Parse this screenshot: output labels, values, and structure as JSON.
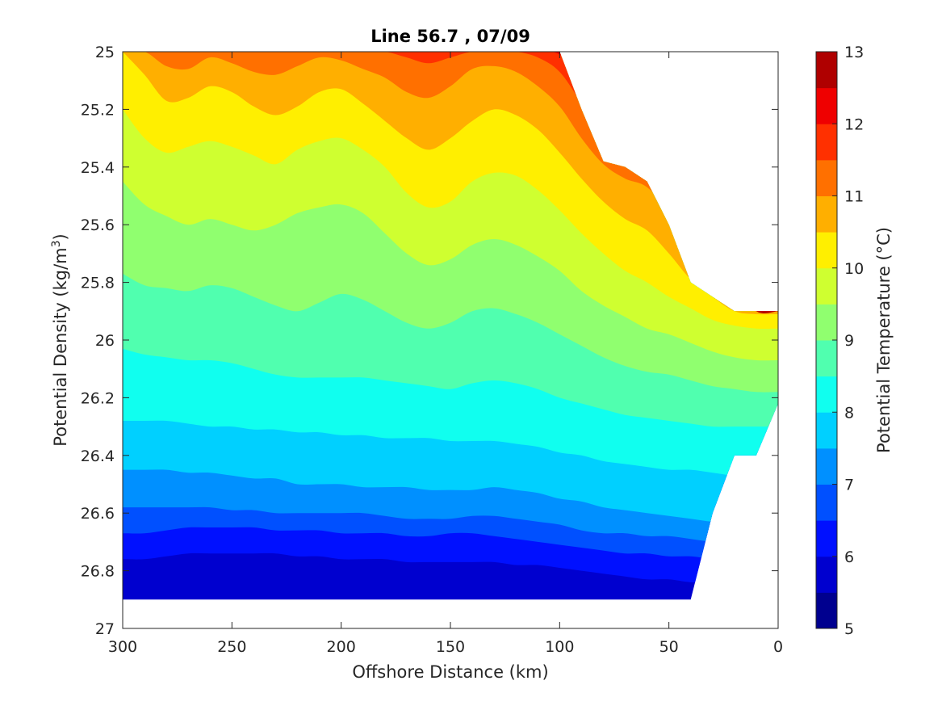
{
  "chart_data": {
    "type": "filled-contour",
    "title": "Line 56.7 , 07/09",
    "xlabel": "Offshore Distance (km)",
    "ylabel": "Potential Density (kg/m^3)",
    "ylabel_parts": {
      "main": "Potential Density (kg/m",
      "sup": "3",
      "close": ")"
    },
    "colorbar_label": "Potential Temperature (°C)",
    "xlim": [
      0,
      300
    ],
    "x_reversed": true,
    "ylim": [
      25,
      27
    ],
    "y_reversed": true,
    "x_ticks": [
      300,
      250,
      200,
      150,
      100,
      50,
      0
    ],
    "x_tick_labels": [
      "300",
      "250",
      "200",
      "150",
      "100",
      "50",
      "0"
    ],
    "y_ticks": [
      25,
      25.2,
      25.4,
      25.6,
      25.8,
      26,
      26.2,
      26.4,
      26.6,
      26.8,
      27
    ],
    "y_tick_labels": [
      "25",
      "25.2",
      "25.4",
      "25.6",
      "25.8",
      "26",
      "26.2",
      "26.4",
      "26.6",
      "26.8",
      "27"
    ],
    "colorbar": {
      "clim": [
        5,
        13
      ],
      "ticks": [
        5,
        6,
        7,
        8,
        9,
        10,
        11,
        12,
        13
      ],
      "tick_labels": [
        "5",
        "6",
        "7",
        "8",
        "9",
        "10",
        "11",
        "12",
        "13"
      ],
      "levels": [
        5,
        5.5,
        6,
        6.5,
        7,
        7.5,
        8,
        8.5,
        9,
        9.5,
        10,
        10.5,
        11,
        11.5,
        12,
        12.5,
        13
      ],
      "colors": [
        "#00008f",
        "#0000cf",
        "#0010ff",
        "#0050ff",
        "#0090ff",
        "#00d0ff",
        "#10ffef",
        "#50ffaf",
        "#90ff6f",
        "#cfff30",
        "#ffef00",
        "#ffaf00",
        "#ff7000",
        "#ff3000",
        "#ef0000",
        "#af0000"
      ]
    },
    "x_nodes": [
      300,
      290,
      280,
      270,
      260,
      250,
      240,
      230,
      220,
      210,
      200,
      190,
      180,
      170,
      160,
      150,
      140,
      130,
      120,
      110,
      100,
      90,
      80,
      70,
      60,
      50,
      40,
      30,
      20,
      10,
      0
    ],
    "data_extent": {
      "bottom_density_by_x": [
        26.9,
        26.9,
        26.9,
        26.9,
        26.9,
        26.9,
        26.9,
        26.9,
        26.9,
        26.9,
        26.9,
        26.9,
        26.9,
        26.9,
        26.9,
        26.9,
        26.9,
        26.9,
        26.9,
        26.9,
        26.9,
        26.9,
        26.9,
        26.9,
        26.9,
        26.9,
        26.9,
        26.6,
        26.4,
        26.4,
        26.22
      ],
      "top_density_by_x": [
        25,
        25,
        25,
        25,
        25,
        25,
        25,
        25,
        25,
        25,
        25,
        25,
        25,
        25,
        25,
        25,
        25,
        25,
        25,
        25,
        25,
        25.2,
        25.38,
        25.4,
        25.45,
        25.6,
        25.8,
        25.85,
        25.9,
        25.9,
        25.9
      ]
    },
    "isotherms": [
      {
        "level": 6.0,
        "density": [
          26.76,
          26.76,
          26.75,
          26.74,
          26.74,
          26.74,
          26.74,
          26.74,
          26.75,
          26.75,
          26.76,
          26.76,
          26.76,
          26.77,
          26.77,
          26.77,
          26.77,
          26.77,
          26.78,
          26.78,
          26.79,
          26.8,
          26.81,
          26.82,
          26.83,
          26.83,
          26.84,
          26.84,
          26.84,
          26.84,
          26.84
        ]
      },
      {
        "level": 6.5,
        "density": [
          26.67,
          26.67,
          26.66,
          26.65,
          26.65,
          26.65,
          26.65,
          26.66,
          26.66,
          26.66,
          26.67,
          26.67,
          26.67,
          26.68,
          26.68,
          26.67,
          26.67,
          26.68,
          26.69,
          26.7,
          26.71,
          26.72,
          26.73,
          26.74,
          26.74,
          26.75,
          26.75,
          26.76,
          26.76,
          26.76,
          26.76
        ]
      },
      {
        "level": 7.0,
        "density": [
          26.58,
          26.58,
          26.58,
          26.58,
          26.58,
          26.59,
          26.59,
          26.6,
          26.6,
          26.6,
          26.6,
          26.6,
          26.61,
          26.62,
          26.62,
          26.62,
          26.61,
          26.61,
          26.62,
          26.63,
          26.64,
          26.66,
          26.67,
          26.67,
          26.68,
          26.68,
          26.69,
          26.7,
          26.7,
          26.7,
          26.7
        ]
      },
      {
        "level": 7.5,
        "density": [
          26.45,
          26.45,
          26.45,
          26.46,
          26.46,
          26.47,
          26.48,
          26.48,
          26.5,
          26.5,
          26.5,
          26.51,
          26.51,
          26.51,
          26.52,
          26.52,
          26.52,
          26.51,
          26.52,
          26.53,
          26.55,
          26.56,
          26.58,
          26.59,
          26.6,
          26.61,
          26.62,
          26.63,
          26.63,
          26.63,
          26.63
        ]
      },
      {
        "level": 8.0,
        "density": [
          26.28,
          26.28,
          26.28,
          26.29,
          26.3,
          26.3,
          26.31,
          26.31,
          26.32,
          26.32,
          26.33,
          26.33,
          26.34,
          26.34,
          26.34,
          26.35,
          26.35,
          26.35,
          26.36,
          26.37,
          26.39,
          26.4,
          26.42,
          26.43,
          26.44,
          26.45,
          26.45,
          26.46,
          26.47,
          26.47,
          26.47
        ]
      },
      {
        "level": 8.5,
        "density": [
          26.03,
          26.05,
          26.06,
          26.07,
          26.07,
          26.08,
          26.1,
          26.12,
          26.13,
          26.13,
          26.13,
          26.13,
          26.14,
          26.15,
          26.16,
          26.17,
          26.15,
          26.14,
          26.15,
          26.17,
          26.2,
          26.22,
          26.24,
          26.26,
          26.27,
          26.28,
          26.29,
          26.3,
          26.3,
          26.3,
          26.3
        ]
      },
      {
        "level": 9.0,
        "density": [
          25.77,
          25.81,
          25.82,
          25.83,
          25.81,
          25.82,
          25.85,
          25.88,
          25.9,
          25.87,
          25.84,
          25.86,
          25.9,
          25.94,
          25.96,
          25.94,
          25.9,
          25.89,
          25.91,
          25.94,
          25.98,
          26.02,
          26.06,
          26.09,
          26.11,
          26.12,
          26.14,
          26.16,
          26.17,
          26.18,
          26.18
        ]
      },
      {
        "level": 9.5,
        "density": [
          25.45,
          25.53,
          25.57,
          25.6,
          25.58,
          25.6,
          25.62,
          25.6,
          25.56,
          25.54,
          25.53,
          25.56,
          25.63,
          25.7,
          25.74,
          25.72,
          25.67,
          25.65,
          25.67,
          25.71,
          25.76,
          25.83,
          25.88,
          25.92,
          25.96,
          25.98,
          26.01,
          26.04,
          26.06,
          26.07,
          26.07
        ]
      },
      {
        "level": 10.0,
        "density": [
          25.2,
          25.3,
          25.35,
          25.33,
          25.31,
          25.33,
          25.36,
          25.39,
          25.34,
          25.31,
          25.3,
          25.34,
          25.4,
          25.49,
          25.54,
          25.52,
          25.45,
          25.42,
          25.43,
          25.48,
          25.55,
          25.63,
          25.7,
          25.76,
          25.8,
          25.85,
          25.89,
          25.93,
          25.95,
          25.96,
          25.96
        ]
      },
      {
        "level": 10.5,
        "density": [
          25.0,
          25.08,
          25.17,
          25.16,
          25.12,
          25.14,
          25.19,
          25.22,
          25.19,
          25.14,
          25.13,
          25.18,
          25.24,
          25.3,
          25.34,
          25.3,
          25.24,
          25.2,
          25.22,
          25.27,
          25.35,
          25.44,
          25.52,
          25.58,
          25.62,
          25.7,
          25.79,
          25.85,
          25.9,
          25.91,
          25.91
        ]
      },
      {
        "level": 11.0,
        "density": [
          25.0,
          25.0,
          25.05,
          25.06,
          25.02,
          25.04,
          25.07,
          25.08,
          25.05,
          25.02,
          25.03,
          25.06,
          25.09,
          25.14,
          25.16,
          25.12,
          25.06,
          25.05,
          25.07,
          25.12,
          25.19,
          25.3,
          25.39,
          25.44,
          25.47,
          25.56,
          25.72,
          25.8,
          25.88,
          25.9,
          25.9
        ]
      },
      {
        "level": 11.5,
        "density": [
          25.0,
          25.0,
          25.0,
          25.0,
          25.0,
          25.0,
          25.0,
          25.0,
          25.0,
          25.0,
          25.0,
          25.0,
          25.0,
          25.02,
          25.04,
          25.02,
          25.0,
          25.0,
          25.0,
          25.02,
          25.07,
          25.18,
          25.3,
          25.38,
          25.43,
          25.5,
          25.68,
          25.78,
          25.86,
          25.9,
          25.9
        ]
      },
      {
        "level": 12.0,
        "density": [
          25.0,
          25.0,
          25.0,
          25.0,
          25.0,
          25.0,
          25.0,
          25.0,
          25.0,
          25.0,
          25.0,
          25.0,
          25.0,
          25.0,
          25.0,
          25.0,
          25.0,
          25.0,
          25.0,
          25.0,
          25.01,
          25.1,
          25.24,
          25.33,
          25.4,
          25.45,
          25.6,
          25.75,
          25.85,
          25.9,
          25.9
        ]
      },
      {
        "level": 12.5,
        "density": [
          25.0,
          25.0,
          25.0,
          25.0,
          25.0,
          25.0,
          25.0,
          25.0,
          25.0,
          25.0,
          25.0,
          25.0,
          25.0,
          25.0,
          25.0,
          25.0,
          25.0,
          25.0,
          25.0,
          25.0,
          25.0,
          25.05,
          25.2,
          25.3,
          25.38,
          25.4,
          25.5,
          25.7,
          25.8,
          25.9,
          25.9
        ]
      }
    ]
  }
}
